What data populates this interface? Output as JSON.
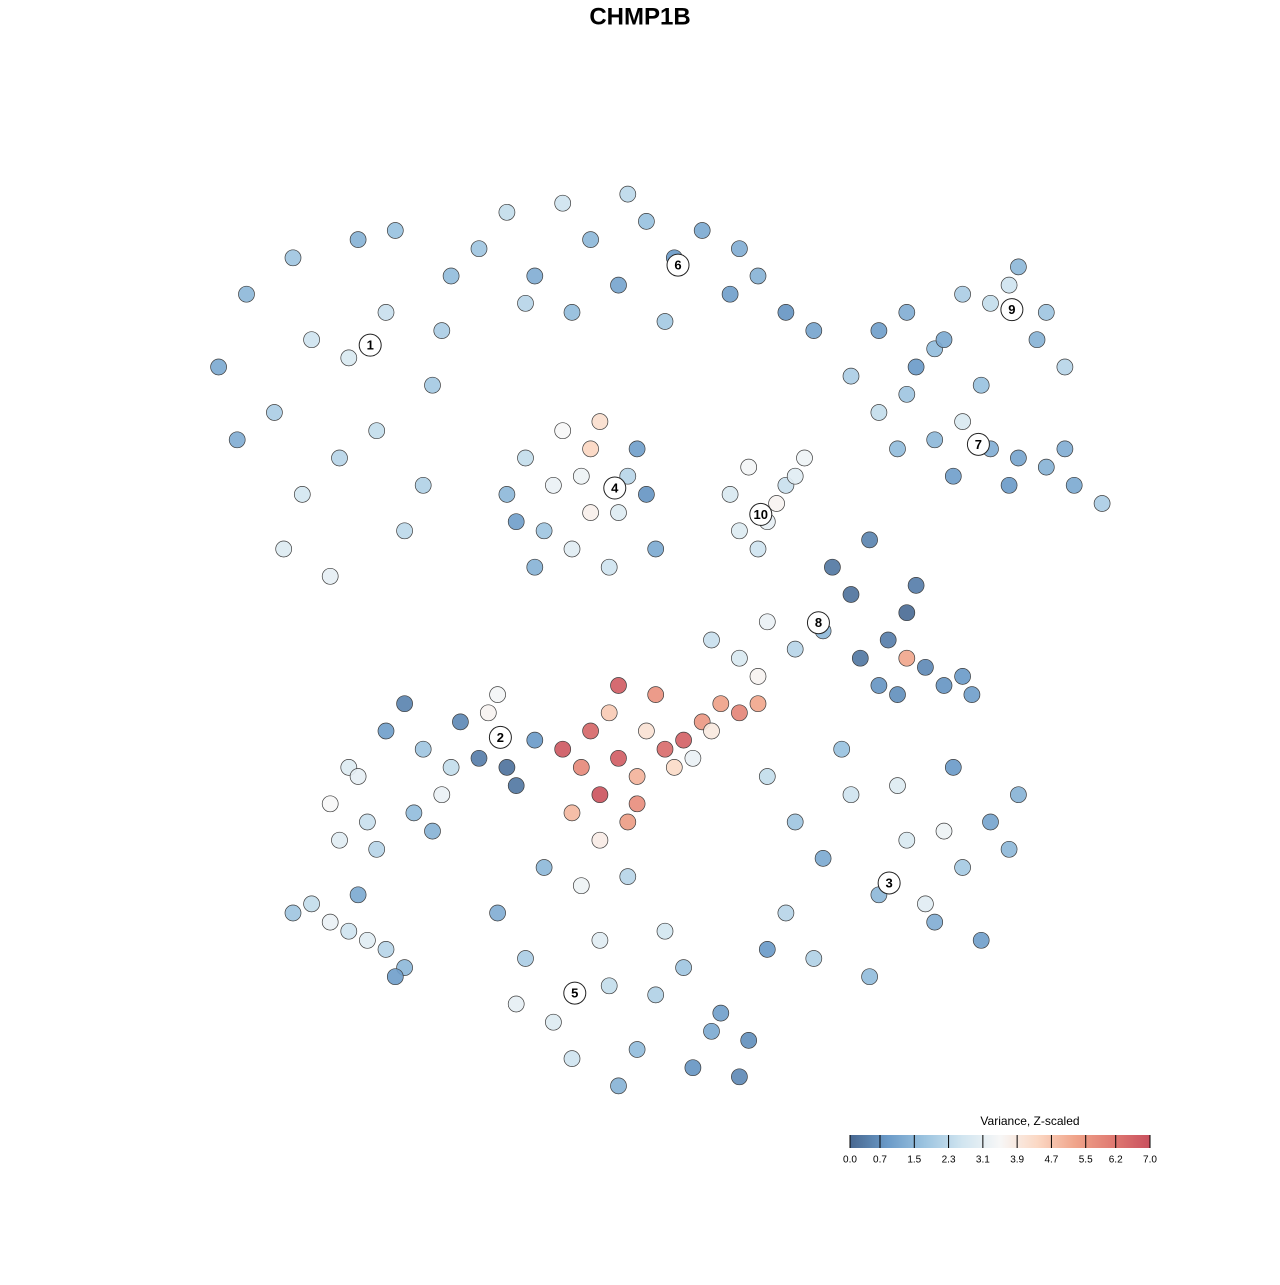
{
  "chart_data": {
    "type": "scatter",
    "title": "CHMP1B",
    "xlim": [
      0,
      100
    ],
    "ylim": [
      0,
      100
    ],
    "colorbar": {
      "title": "Variance, Z-scaled",
      "clim": [
        0,
        7
      ],
      "colors": [
        "#476790",
        "#6a9ac8",
        "#9cc4e0",
        "#d1e5f0",
        "#f7f7f7",
        "#fbd8c4",
        "#f0a48a",
        "#e07a72",
        "#c9505e"
      ],
      "ticks": [
        {
          "value": 0,
          "label": "0.0"
        },
        0.7,
        1.5,
        2.3,
        3.1,
        3.9,
        4.7,
        5.5,
        6.2,
        {
          "value": 7,
          "label": "7.0"
        }
      ]
    },
    "annotations": [
      {
        "text": "1",
        "x": 18.3,
        "y": 82.4
      },
      {
        "text": "2",
        "x": 32.3,
        "y": 39.3
      },
      {
        "text": "3",
        "x": 74.1,
        "y": 23.3
      },
      {
        "text": "4",
        "x": 44.6,
        "y": 66.7
      },
      {
        "text": "5",
        "x": 40.3,
        "y": 11.2
      },
      {
        "text": "6",
        "x": 51.4,
        "y": 91.2
      },
      {
        "text": "7",
        "x": 83.7,
        "y": 71.5
      },
      {
        "text": "8",
        "x": 66.5,
        "y": 51.9
      },
      {
        "text": "9",
        "x": 87.3,
        "y": 86.3
      },
      {
        "text": "10",
        "x": 60.3,
        "y": 63.8
      }
    ],
    "series": [
      {
        "x": [
          2,
          5,
          8,
          10,
          12,
          15,
          17,
          20,
          22,
          25,
          27,
          9,
          14,
          19,
          24,
          4,
          11,
          16,
          21,
          26
        ],
        "y": [
          80,
          88,
          75,
          92,
          83,
          70,
          94,
          86,
          62,
          78,
          90,
          60,
          57,
          73,
          67,
          72,
          66,
          81,
          95,
          84
        ],
        "values": [
          1.2,
          1.5,
          2.0,
          1.8,
          2.6,
          2.2,
          1.4,
          2.5,
          2.3,
          1.9,
          1.6,
          2.9,
          3.1,
          2.4,
          2.1,
          1.3,
          2.7,
          2.8,
          1.7,
          2.0
        ]
      },
      {
        "x": [
          30,
          33,
          36,
          39,
          42,
          45,
          48,
          51,
          54,
          57,
          60,
          63,
          66,
          40,
          50,
          35,
          46,
          58
        ],
        "y": [
          93,
          97,
          90,
          98,
          94,
          89,
          96,
          92,
          95,
          88,
          90,
          86,
          84,
          86,
          85,
          87,
          99,
          93
        ],
        "values": [
          1.8,
          2.4,
          1.3,
          2.6,
          1.5,
          1.1,
          1.7,
          0.9,
          1.2,
          1.0,
          1.4,
          0.8,
          1.1,
          1.6,
          1.9,
          2.2,
          2.3,
          1.3
        ]
      },
      {
        "x": [
          73,
          76,
          79,
          82,
          85,
          88,
          91,
          93,
          80,
          87,
          90,
          77
        ],
        "y": [
          84,
          86,
          82,
          88,
          87,
          91,
          86,
          80,
          83,
          89,
          83,
          80
        ],
        "values": [
          1.0,
          1.3,
          1.6,
          2.0,
          2.4,
          1.5,
          1.8,
          2.2,
          1.2,
          2.6,
          1.4,
          0.9
        ]
      },
      {
        "x": [
          70,
          73,
          76,
          79,
          82,
          85,
          88,
          91,
          94,
          97,
          75,
          81,
          87,
          93,
          84
        ],
        "y": [
          79,
          75,
          77,
          72,
          74,
          71,
          70,
          69,
          67,
          65,
          71,
          68,
          67,
          71,
          78
        ],
        "values": [
          2.0,
          2.4,
          1.8,
          1.5,
          2.8,
          1.3,
          1.1,
          1.4,
          1.2,
          2.0,
          1.6,
          1.0,
          0.9,
          1.3,
          1.7
        ]
      },
      {
        "x": [
          33,
          35,
          37,
          39,
          41,
          43,
          45,
          47,
          49,
          36,
          40,
          44,
          48,
          38,
          42,
          46,
          34,
          42
        ],
        "y": [
          66,
          70,
          62,
          73,
          68,
          74,
          64,
          71,
          60,
          58,
          60,
          58,
          66,
          67,
          64,
          68,
          63,
          71
        ],
        "values": [
          1.5,
          2.4,
          1.8,
          3.5,
          3.3,
          4.2,
          2.9,
          1.0,
          1.2,
          1.4,
          3.0,
          2.6,
          0.8,
          3.2,
          3.7,
          2.2,
          1.0,
          4.4
        ]
      },
      {
        "x": [
          57,
          59,
          61,
          63,
          65,
          60,
          62,
          58,
          64
        ],
        "y": [
          66,
          69,
          63,
          67,
          70,
          60,
          65,
          62,
          68
        ],
        "values": [
          2.8,
          3.4,
          3.1,
          2.5,
          3.3,
          2.6,
          3.6,
          2.9,
          3.0
        ]
      },
      {
        "x": [
          68,
          70,
          72,
          74,
          76,
          78,
          80,
          83,
          71,
          75,
          76,
          82,
          55,
          58,
          61,
          64,
          67,
          77,
          73,
          60
        ],
        "y": [
          58,
          55,
          61,
          50,
          53,
          47,
          45,
          44,
          48,
          44,
          48,
          46,
          50,
          48,
          52,
          49,
          51,
          56,
          45,
          46
        ],
        "values": [
          0.3,
          0.2,
          0.5,
          0.4,
          0.1,
          0.6,
          0.8,
          1.0,
          0.3,
          0.7,
          5.2,
          0.9,
          2.5,
          2.8,
          3.2,
          2.2,
          1.5,
          0.4,
          0.8,
          3.6
        ]
      },
      {
        "x": [
          14,
          16,
          18,
          20,
          22,
          24,
          26,
          28,
          30,
          32,
          34,
          36,
          15,
          19,
          23,
          27,
          31,
          17,
          25,
          33
        ],
        "y": [
          32,
          36,
          30,
          40,
          43,
          38,
          33,
          41,
          37,
          44,
          34,
          39,
          28,
          27,
          31,
          36,
          42,
          35,
          29,
          36
        ],
        "values": [
          3.5,
          2.9,
          2.5,
          1.0,
          0.5,
          1.8,
          3.2,
          0.6,
          0.4,
          3.4,
          0.3,
          0.9,
          3.0,
          2.2,
          1.6,
          2.4,
          3.6,
          3.1,
          1.4,
          0.2
        ]
      },
      {
        "x": [
          39,
          41,
          42,
          43,
          44,
          45,
          46,
          47,
          48,
          49,
          50,
          52,
          54,
          56,
          58,
          60,
          40,
          43,
          47,
          51,
          55,
          45,
          53
        ],
        "y": [
          38,
          36,
          40,
          33,
          42,
          37,
          30,
          35,
          40,
          44,
          38,
          39,
          41,
          43,
          42,
          43,
          31,
          28,
          32,
          36,
          40,
          45,
          37
        ],
        "values": [
          6.8,
          5.8,
          6.5,
          6.9,
          4.6,
          6.7,
          5.4,
          5.0,
          4.1,
          5.6,
          6.4,
          6.6,
          5.5,
          5.3,
          5.9,
          5.2,
          4.9,
          3.8,
          5.7,
          4.3,
          3.9,
          6.7,
          3.2
        ]
      },
      {
        "x": [
          61,
          64,
          67,
          70,
          73,
          76,
          79,
          82,
          85,
          88,
          66,
          72,
          78,
          84,
          69,
          75,
          81,
          87,
          63,
          80
        ],
        "y": [
          35,
          30,
          26,
          33,
          22,
          28,
          19,
          25,
          30,
          33,
          15,
          13,
          21,
          17,
          38,
          34,
          36,
          27,
          20,
          29
        ],
        "values": [
          2.4,
          1.8,
          1.2,
          2.6,
          1.5,
          2.8,
          1.3,
          1.9,
          1.1,
          1.4,
          2.1,
          1.6,
          3.0,
          1.0,
          1.7,
          2.9,
          0.9,
          1.5,
          2.2,
          3.3
        ]
      },
      {
        "x": [
          32,
          35,
          38,
          41,
          44,
          47,
          50,
          53,
          56,
          59,
          34,
          40,
          46,
          52,
          58,
          37,
          43,
          49,
          55,
          61,
          45
        ],
        "y": [
          20,
          15,
          8,
          23,
          12,
          5,
          18,
          3,
          9,
          6,
          10,
          4,
          24,
          14,
          2,
          25,
          17,
          11,
          7,
          16,
          1
        ],
        "values": [
          1.3,
          2.0,
          2.9,
          3.3,
          2.4,
          1.6,
          2.7,
          0.8,
          1.0,
          0.7,
          3.1,
          2.6,
          2.2,
          1.8,
          0.6,
          1.5,
          3.0,
          2.1,
          1.2,
          0.9,
          1.4
        ]
      },
      {
        "x": [
          10,
          12,
          14,
          16,
          18,
          20,
          22,
          17,
          21
        ],
        "y": [
          20,
          21,
          19,
          18,
          17,
          16,
          14,
          22,
          13
        ],
        "values": [
          1.8,
          2.4,
          3.2,
          2.6,
          3.0,
          2.2,
          1.5,
          1.2,
          1.0
        ]
      }
    ]
  }
}
